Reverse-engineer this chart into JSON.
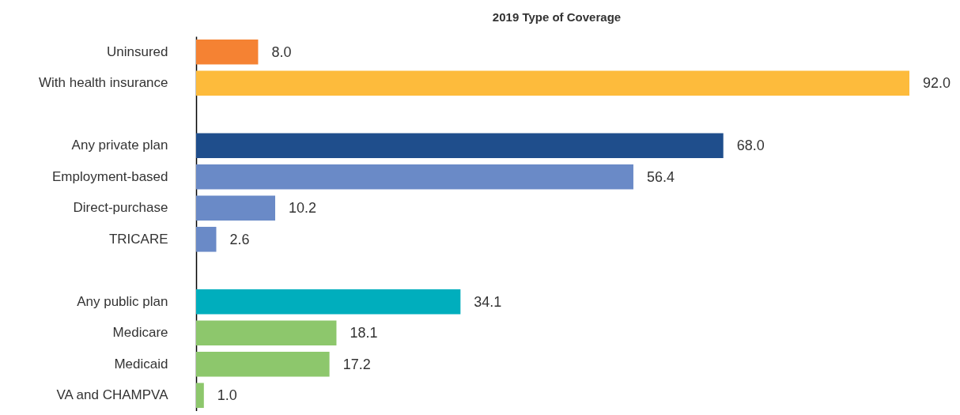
{
  "chart_data": {
    "type": "bar",
    "orientation": "horizontal",
    "title": "2019 Type of Coverage",
    "categories": [
      "Uninsured",
      "With health insurance",
      null,
      "Any private plan",
      "Employment-based",
      "Direct-purchase",
      "TRICARE",
      null,
      "Any public plan",
      "Medicare",
      "Medicaid",
      "VA and CHAMPVA"
    ],
    "values": [
      8.0,
      92.0,
      null,
      68.0,
      56.4,
      10.2,
      2.6,
      null,
      34.1,
      18.1,
      17.2,
      1.0
    ],
    "value_labels": [
      "8.0",
      "92.0",
      null,
      "68.0",
      "56.4",
      "10.2",
      "2.6",
      null,
      "34.1",
      "18.1",
      "17.2",
      "1.0"
    ],
    "colors": [
      "#f58233",
      "#fdbb3c",
      null,
      "#1f4e8c",
      "#6a8ac7",
      "#6a8ac7",
      "#6a8ac7",
      null,
      "#00aebd",
      "#8dc76c",
      "#8dc76c",
      "#8dc76c"
    ]
  }
}
